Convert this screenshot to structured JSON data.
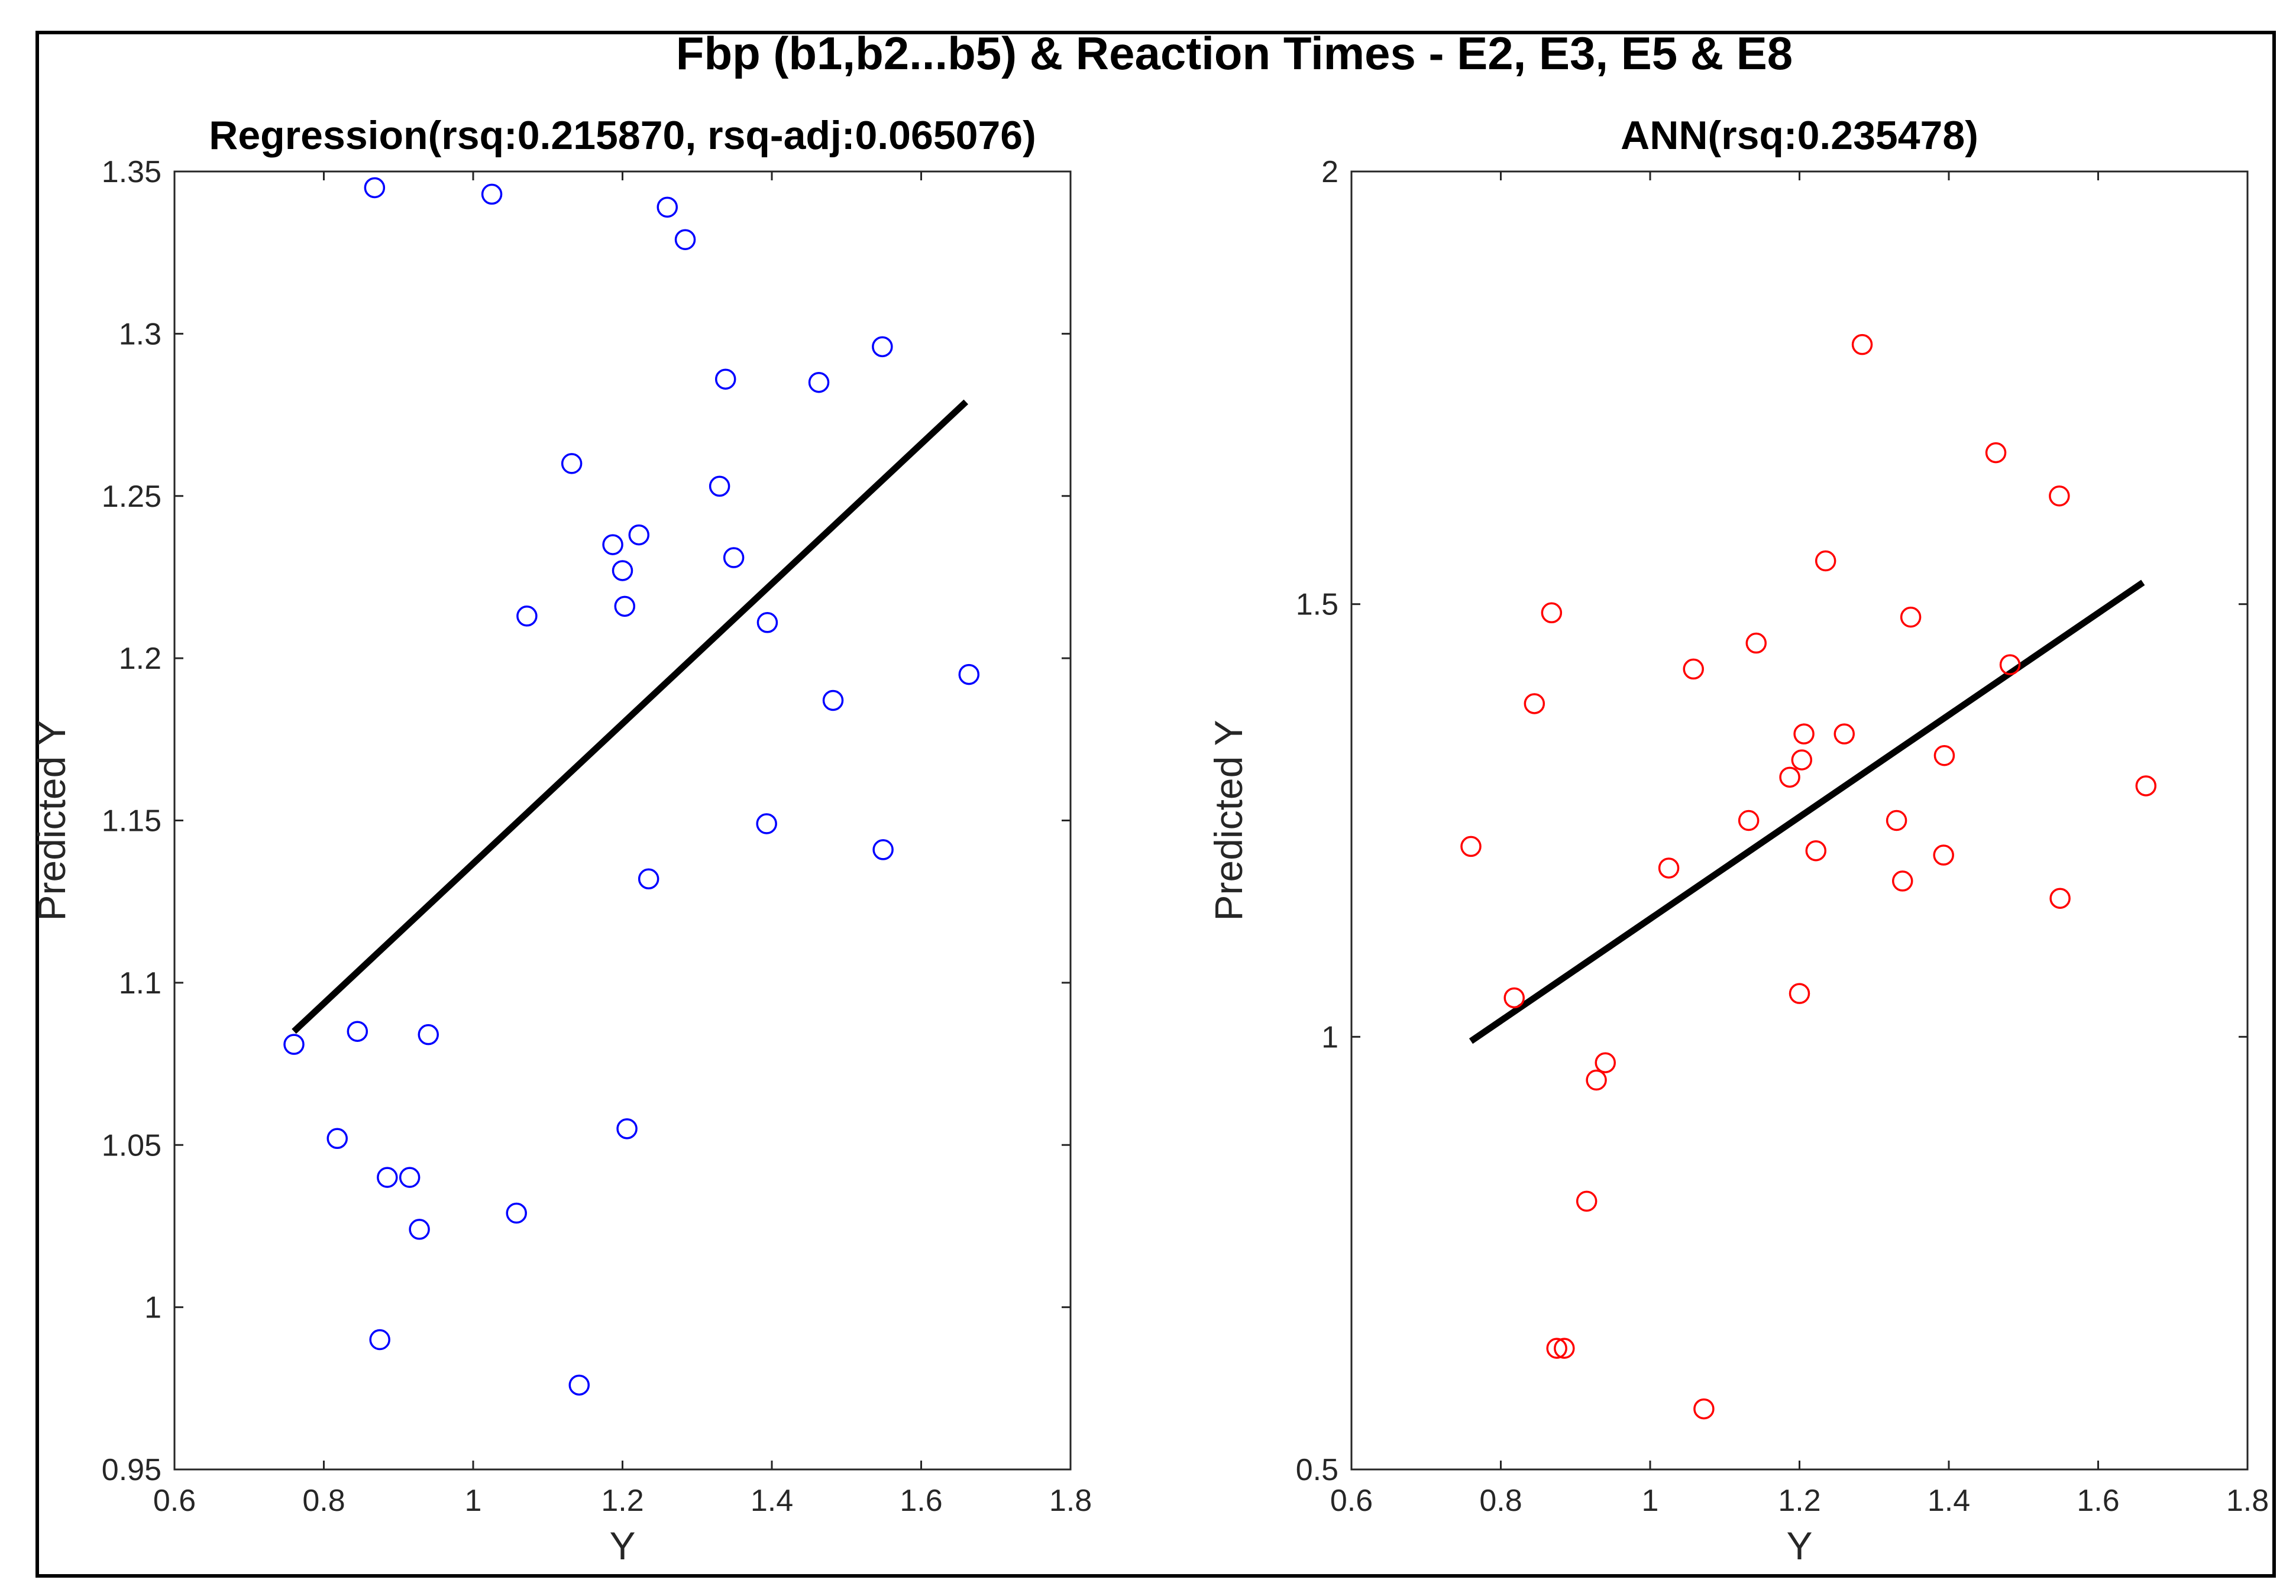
{
  "figure_title": "Fbp (b1,b2...b5) & Reaction Times - E2, E3, E5 & E8",
  "chart_data": [
    {
      "type": "scatter",
      "title": "Regression(rsq:0.215870, rsq-adj:0.065076)",
      "xlabel": "Y",
      "ylabel": "Predicted Y",
      "xlim": [
        0.6,
        1.8
      ],
      "ylim": [
        0.95,
        1.35
      ],
      "xticks": [
        0.6,
        0.8,
        1,
        1.2,
        1.4,
        1.6,
        1.8
      ],
      "xtick_labels": [
        "0.6",
        "0.8",
        "1",
        "1.2",
        "1.4",
        "1.6",
        "1.8"
      ],
      "yticks": [
        0.95,
        1,
        1.05,
        1.1,
        1.15,
        1.2,
        1.25,
        1.3,
        1.35
      ],
      "ytick_labels": [
        "0.95",
        "1",
        "1.05",
        "1.1",
        "1.15",
        "1.2",
        "1.25",
        "1.3",
        "1.35"
      ],
      "marker": "circle",
      "marker_color": "#0000ff",
      "line_color": "#000000",
      "grid": false,
      "points": [
        [
          0.76,
          1.081
        ],
        [
          0.818,
          1.052
        ],
        [
          0.845,
          1.085
        ],
        [
          0.868,
          1.345
        ],
        [
          0.875,
          0.99
        ],
        [
          0.885,
          1.04
        ],
        [
          0.915,
          1.04
        ],
        [
          0.928,
          1.024
        ],
        [
          0.94,
          1.084
        ],
        [
          1.025,
          1.343
        ],
        [
          1.058,
          1.029
        ],
        [
          1.072,
          1.213
        ],
        [
          1.132,
          1.26
        ],
        [
          1.142,
          0.976
        ],
        [
          1.187,
          1.235
        ],
        [
          1.2,
          1.227
        ],
        [
          1.203,
          1.216
        ],
        [
          1.206,
          1.055
        ],
        [
          1.222,
          1.238
        ],
        [
          1.235,
          1.132
        ],
        [
          1.26,
          1.339
        ],
        [
          1.284,
          1.329
        ],
        [
          1.33,
          1.253
        ],
        [
          1.338,
          1.286
        ],
        [
          1.349,
          1.231
        ],
        [
          1.393,
          1.149
        ],
        [
          1.394,
          1.211
        ],
        [
          1.463,
          1.285
        ],
        [
          1.482,
          1.187
        ],
        [
          1.548,
          1.296
        ],
        [
          1.549,
          1.141
        ],
        [
          1.664,
          1.195
        ]
      ],
      "fit_line": [
        [
          0.76,
          1.085
        ],
        [
          1.66,
          1.279
        ]
      ]
    },
    {
      "type": "scatter",
      "title": "ANN(rsq:0.235478)",
      "xlabel": "Y",
      "ylabel": "Predicted Y",
      "xlim": [
        0.6,
        1.8
      ],
      "ylim": [
        0.5,
        2
      ],
      "xticks": [
        0.6,
        0.8,
        1,
        1.2,
        1.4,
        1.6,
        1.8
      ],
      "xtick_labels": [
        "0.6",
        "0.8",
        "1",
        "1.2",
        "1.4",
        "1.6",
        "1.8"
      ],
      "yticks": [
        0.5,
        1,
        1.5,
        2
      ],
      "ytick_labels": [
        "0.5",
        "1",
        "1.5",
        "2"
      ],
      "marker": "circle",
      "marker_color": "#ff0000",
      "line_color": "#000000",
      "grid": false,
      "points": [
        [
          0.76,
          1.22
        ],
        [
          0.818,
          1.045
        ],
        [
          0.845,
          1.385
        ],
        [
          0.868,
          1.49
        ],
        [
          0.875,
          0.64
        ],
        [
          0.885,
          0.64
        ],
        [
          0.915,
          0.81
        ],
        [
          0.928,
          0.95
        ],
        [
          0.94,
          0.97
        ],
        [
          1.025,
          1.195
        ],
        [
          1.058,
          1.425
        ],
        [
          1.072,
          0.57
        ],
        [
          1.132,
          1.25
        ],
        [
          1.142,
          1.455
        ],
        [
          1.187,
          1.3
        ],
        [
          1.2,
          1.05
        ],
        [
          1.203,
          1.32
        ],
        [
          1.206,
          1.35
        ],
        [
          1.222,
          1.215
        ],
        [
          1.235,
          1.55
        ],
        [
          1.26,
          1.35
        ],
        [
          1.284,
          1.8
        ],
        [
          1.33,
          1.25
        ],
        [
          1.338,
          1.18
        ],
        [
          1.349,
          1.485
        ],
        [
          1.393,
          1.21
        ],
        [
          1.394,
          1.325
        ],
        [
          1.463,
          1.675
        ],
        [
          1.482,
          1.43
        ],
        [
          1.548,
          1.625
        ],
        [
          1.549,
          1.16
        ],
        [
          1.664,
          1.29
        ]
      ],
      "fit_line": [
        [
          0.76,
          0.995
        ],
        [
          1.66,
          1.525
        ]
      ]
    }
  ]
}
